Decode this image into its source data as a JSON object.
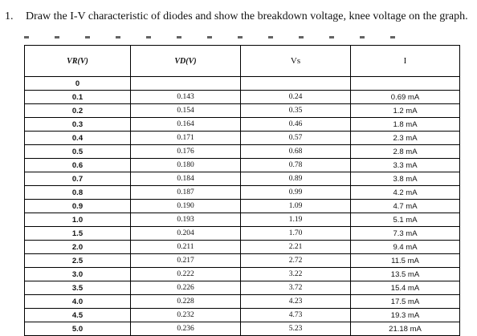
{
  "question": {
    "number": "1.",
    "text": "Draw the I-V characteristic of diodes and show the breakdown voltage, knee voltage on the graph."
  },
  "table": {
    "headers": {
      "vr": "VR(V)",
      "vd": "VD(V)",
      "vs": "Vs",
      "i": "I"
    },
    "rows": [
      {
        "vr": "0",
        "vd": "",
        "vs": "",
        "i": ""
      },
      {
        "vr": "0.1",
        "vd": "0.143",
        "vs": "0.24",
        "i": "0.69 mA"
      },
      {
        "vr": "0.2",
        "vd": "0.154",
        "vs": "0.35",
        "i": "1.2 mA"
      },
      {
        "vr": "0.3",
        "vd": "0.164",
        "vs": "0.46",
        "i": "1.8 mA"
      },
      {
        "vr": "0.4",
        "vd": "0.171",
        "vs": "0.57",
        "i": "2.3 mA"
      },
      {
        "vr": "0.5",
        "vd": "0.176",
        "vs": "0.68",
        "i": "2.8 mA"
      },
      {
        "vr": "0.6",
        "vd": "0.180",
        "vs": "0.78",
        "i": "3.3 mA"
      },
      {
        "vr": "0.7",
        "vd": "0.184",
        "vs": "0.89",
        "i": "3.8 mA"
      },
      {
        "vr": "0.8",
        "vd": "0.187",
        "vs": "0.99",
        "i": "4.2 mA"
      },
      {
        "vr": "0.9",
        "vd": "0.190",
        "vs": "1.09",
        "i": "4.7 mA"
      },
      {
        "vr": "1.0",
        "vd": "0.193",
        "vs": "1.19",
        "i": "5.1 mA"
      },
      {
        "vr": "1.5",
        "vd": "0.204",
        "vs": "1.70",
        "i": "7.3 mA"
      },
      {
        "vr": "2.0",
        "vd": "0.211",
        "vs": "2.21",
        "i": "9.4 mA"
      },
      {
        "vr": "2.5",
        "vd": "0.217",
        "vs": "2.72",
        "i": "11.5 mA"
      },
      {
        "vr": "3.0",
        "vd": "0.222",
        "vs": "3.22",
        "i": "13.5 mA"
      },
      {
        "vr": "3.5",
        "vd": "0.226",
        "vs": "3.72",
        "i": "15.4 mA"
      },
      {
        "vr": "4.0",
        "vd": "0.228",
        "vs": "4.23",
        "i": "17.5 mA"
      },
      {
        "vr": "4.5",
        "vd": "0.232",
        "vs": "4.73",
        "i": "19.3 mA"
      },
      {
        "vr": "5.0",
        "vd": "0.236",
        "vs": "5.23",
        "i": "21.18 mA"
      }
    ]
  }
}
